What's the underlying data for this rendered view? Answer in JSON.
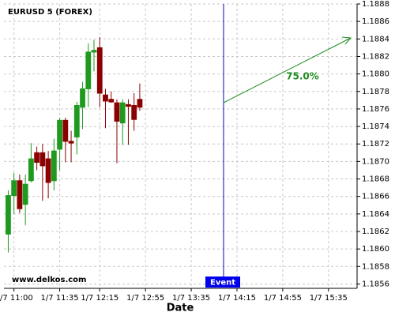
{
  "chart_data": {
    "type": "candlestick",
    "title": "EURUSD 5 (FOREX)",
    "x_label": "Date",
    "watermark": "www.delkos.com",
    "event_label": "Event",
    "annotation": "75.0%",
    "x": [
      0,
      1,
      2,
      3,
      4,
      5,
      6,
      7,
      8,
      9,
      10,
      11,
      12,
      13,
      14,
      15,
      16,
      17,
      18,
      19,
      20,
      21,
      22,
      23
    ],
    "open": [
      1.18617,
      1.18661,
      1.18678,
      1.18651,
      1.18678,
      1.1871,
      1.1871,
      1.18703,
      1.18678,
      1.18714,
      1.18747,
      1.18723,
      1.18728,
      1.18762,
      1.18783,
      1.18825,
      1.1883,
      1.18776,
      1.18771,
      1.18767,
      1.18744,
      1.18765,
      1.18764,
      1.18771
    ],
    "high": [
      1.18667,
      1.18687,
      1.18685,
      1.18685,
      1.18721,
      1.18717,
      1.1872,
      1.18712,
      1.18726,
      1.1875,
      1.1875,
      1.18735,
      1.18768,
      1.18791,
      1.18835,
      1.18839,
      1.18842,
      1.18783,
      1.1878,
      1.18771,
      1.18771,
      1.18771,
      1.18778,
      1.18789
    ],
    "low": [
      1.18596,
      1.1864,
      1.18641,
      1.18627,
      1.18676,
      1.1869,
      1.18655,
      1.18658,
      1.18667,
      1.1869,
      1.18699,
      1.18699,
      1.18708,
      1.18737,
      1.18762,
      1.18803,
      1.18762,
      1.18738,
      1.18767,
      1.18698,
      1.18719,
      1.18719,
      1.18735,
      1.18758
    ],
    "close": [
      1.18661,
      1.18678,
      1.18646,
      1.18674,
      1.18703,
      1.18699,
      1.18695,
      1.18676,
      1.18712,
      1.18747,
      1.18723,
      1.18721,
      1.18764,
      1.18783,
      1.18825,
      1.18827,
      1.18778,
      1.18769,
      1.18768,
      1.18746,
      1.18767,
      1.18763,
      1.18748,
      1.18762
    ],
    "up_color": "#1e9a1e",
    "down_color": "#8b0000",
    "xlim": [
      -0.75,
      61
    ],
    "xticks": [
      {
        "value": 1,
        "label": "1/7 11:00"
      },
      {
        "value": 9,
        "label": "1/7 11:35"
      },
      {
        "value": 16,
        "label": "1/7 12:15"
      },
      {
        "value": 24,
        "label": "1/7 12:55"
      },
      {
        "value": 32,
        "label": "1/7 13:35"
      },
      {
        "value": 40,
        "label": "1/7 14:15"
      },
      {
        "value": 48,
        "label": "1/7 14:55"
      },
      {
        "value": 56,
        "label": "1/7 15:35"
      }
    ],
    "ylim": [
      1.18555,
      1.1888
    ],
    "yticks": [
      1.1856,
      1.1858,
      {
        "value": 1.186,
        "label": "1.1860"
      },
      1.1862,
      1.1864,
      1.1866,
      1.1868,
      {
        "value": 1.187,
        "label": "1.1870"
      },
      1.1872,
      1.1874,
      1.1876,
      1.1878,
      {
        "value": 1.188,
        "label": "1.1880"
      },
      1.1882,
      1.1884,
      1.1886,
      1.1888
    ],
    "grid": true
  }
}
